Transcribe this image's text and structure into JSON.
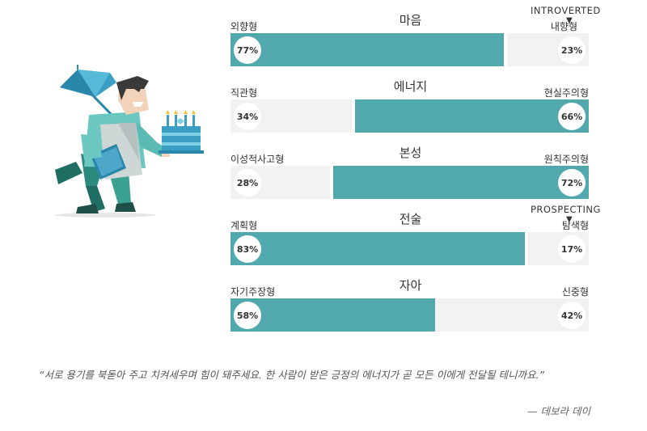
{
  "traits": [
    {
      "title": "마음",
      "left": "외향형",
      "right": "내향형",
      "left_pct": "77%",
      "right_pct": "23%",
      "value": 77,
      "dominant": "left"
    },
    {
      "title": "에너지",
      "left": "직관형",
      "right": "현실주의형",
      "left_pct": "34%",
      "right_pct": "66%",
      "value": 66,
      "dominant": "right"
    },
    {
      "title": "본성",
      "left": "이성적사고형",
      "right": "원칙주의형",
      "left_pct": "28%",
      "right_pct": "72%",
      "value": 72,
      "dominant": "right"
    },
    {
      "title": "전술",
      "left": "계획형",
      "right": "탐색형",
      "left_pct": "83%",
      "right_pct": "17%",
      "value": 83,
      "dominant": "left"
    },
    {
      "title": "자아",
      "left": "자기주장형",
      "right": "신중형",
      "left_pct": "58%",
      "right_pct": "42%",
      "value": 58,
      "dominant": "left"
    }
  ],
  "markers": {
    "introverted": "INTROVERTED",
    "prospecting": "PROSPECTING"
  },
  "quote": {
    "text": "“서로 용기를 북돋아 주고 치켜세우며 힘이 돼주세요. 한 사람이 받은 긍정의 에너지가 곧 모든 이에게 전달될 테니까요.”",
    "author": "— 데보라 데이"
  },
  "colors": {
    "accent": "#51a8ad",
    "track": "#f2f2f2"
  },
  "icons": {
    "illustration": "man-with-umbrella-and-cake-illustration"
  }
}
